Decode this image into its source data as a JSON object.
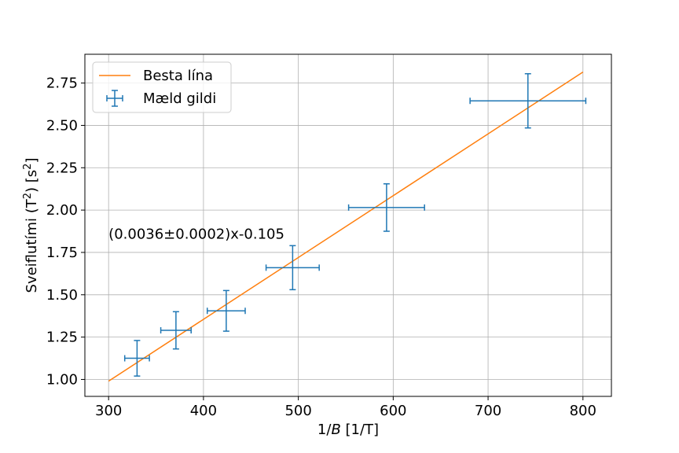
{
  "chart_data": {
    "type": "scatter",
    "xlabel": "1/B [1/T]",
    "ylabel": "Sveiflutími (T²) [s²]",
    "xlim": [
      275,
      830
    ],
    "ylim": [
      0.9,
      2.92
    ],
    "x_ticks": [
      300,
      400,
      500,
      600,
      700,
      800
    ],
    "y_ticks": [
      1.0,
      1.25,
      1.5,
      1.75,
      2.0,
      2.25,
      2.5,
      2.75
    ],
    "x_tick_labels": [
      "300",
      "400",
      "500",
      "600",
      "700",
      "800"
    ],
    "y_tick_labels": [
      "1.00",
      "1.25",
      "1.50",
      "1.75",
      "2.00",
      "2.25",
      "2.50",
      "2.75"
    ],
    "grid": true,
    "legend": {
      "placement": "top-left",
      "entries": [
        "Besta lína",
        "Mæld gildi"
      ]
    },
    "annotation": {
      "text": "(0.0036±0.0002)x-0.105",
      "x": 300,
      "y": 1.86
    },
    "series": [
      {
        "name": "Besta lína",
        "kind": "line",
        "color": "#ff7f0e",
        "points": [
          [
            300,
            0.99
          ],
          [
            800,
            2.815
          ]
        ]
      },
      {
        "name": "Mæld gildi",
        "kind": "errorbar",
        "color": "#1f77b4",
        "points": [
          {
            "x": 330,
            "y": 1.125,
            "xerr": 13,
            "yerr": 0.105
          },
          {
            "x": 371,
            "y": 1.29,
            "xerr": 16,
            "yerr": 0.11
          },
          {
            "x": 424,
            "y": 1.405,
            "xerr": 20,
            "yerr": 0.12
          },
          {
            "x": 494,
            "y": 1.66,
            "xerr": 28,
            "yerr": 0.13
          },
          {
            "x": 593,
            "y": 2.015,
            "xerr": 40,
            "yerr": 0.14
          },
          {
            "x": 742,
            "y": 2.645,
            "xerr": 61,
            "yerr": 0.16
          }
        ]
      }
    ]
  }
}
